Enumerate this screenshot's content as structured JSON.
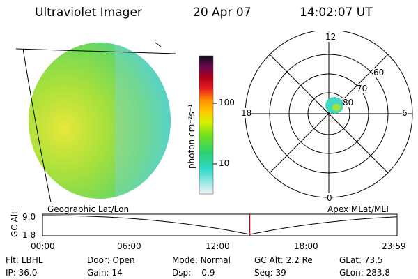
{
  "header": {
    "instrument": "Ultraviolet Imager",
    "date": "20 Apr 07",
    "time": "14:02:07 UT"
  },
  "colorbar": {
    "unit_label": "photon cm⁻²s⁻¹",
    "ticks": [
      "100",
      "10"
    ]
  },
  "polar": {
    "mlt_labels": {
      "top": "12",
      "bottom": "0",
      "left": "18",
      "right": "6"
    },
    "lat_labels": [
      "60",
      "70",
      "80"
    ]
  },
  "timeline": {
    "y_label": "GC Alt",
    "y_ticks": [
      "9.0",
      "1.8"
    ],
    "left_title": "Geographic Lat/Lon",
    "right_title": "Apex MLat/MLT",
    "x_ticks": [
      "00:00",
      "06:00",
      "12:00",
      "18:00",
      "23:59"
    ],
    "marker_time_hours": 14.03,
    "marker_color": "#d00000"
  },
  "status": {
    "row1": [
      {
        "key": "Flt:",
        "value": "LBHL"
      },
      {
        "key": "Door:",
        "value": "Open"
      },
      {
        "key": "Mode:",
        "value": "Normal"
      },
      {
        "key": "GC Alt:",
        "value": "2.2 Re"
      },
      {
        "key": "GLat:",
        "value": "73.5"
      }
    ],
    "row2": [
      {
        "key": "IP:",
        "value": "36.0"
      },
      {
        "key": "Gain:",
        "value": "14"
      },
      {
        "key": "Dsp:",
        "value": "0.9"
      },
      {
        "key": "Seq:",
        "value": "39"
      },
      {
        "key": "GLon:",
        "value": "283.8"
      }
    ]
  }
}
